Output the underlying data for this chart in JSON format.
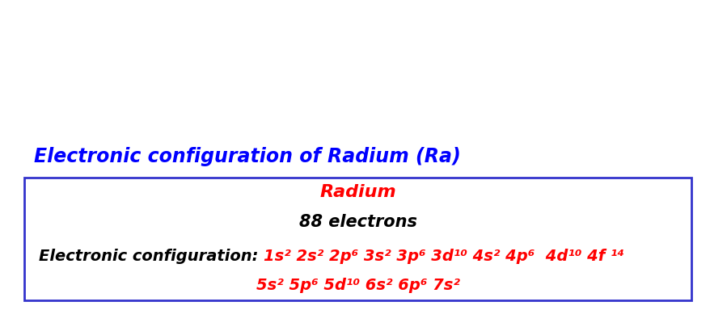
{
  "title": "Electronic configuration of Radium (Ra)",
  "title_color": "#0000FF",
  "title_fontsize": 17,
  "element_name": "Radium",
  "element_name_color": "#FF0000",
  "element_name_fontsize": 16,
  "electrons_text": "88 electrons",
  "electrons_color": "#000000",
  "electrons_fontsize": 15,
  "config_label": "Electronic configuration: ",
  "config_label_color": "#000000",
  "config_line1": "1s² 2s² 2p⁶ 3s² 3p⁶ 3d¹⁰ 4s² 4p⁶  4d¹⁰ 4f ¹⁴",
  "config_line2": "5s² 5p⁶ 5d¹⁰ 6s² 6p⁶ 7s²",
  "config_color": "#FF0000",
  "config_fontsize": 14,
  "box_edge_color": "#3333CC",
  "background_color": "#FFFFFF"
}
